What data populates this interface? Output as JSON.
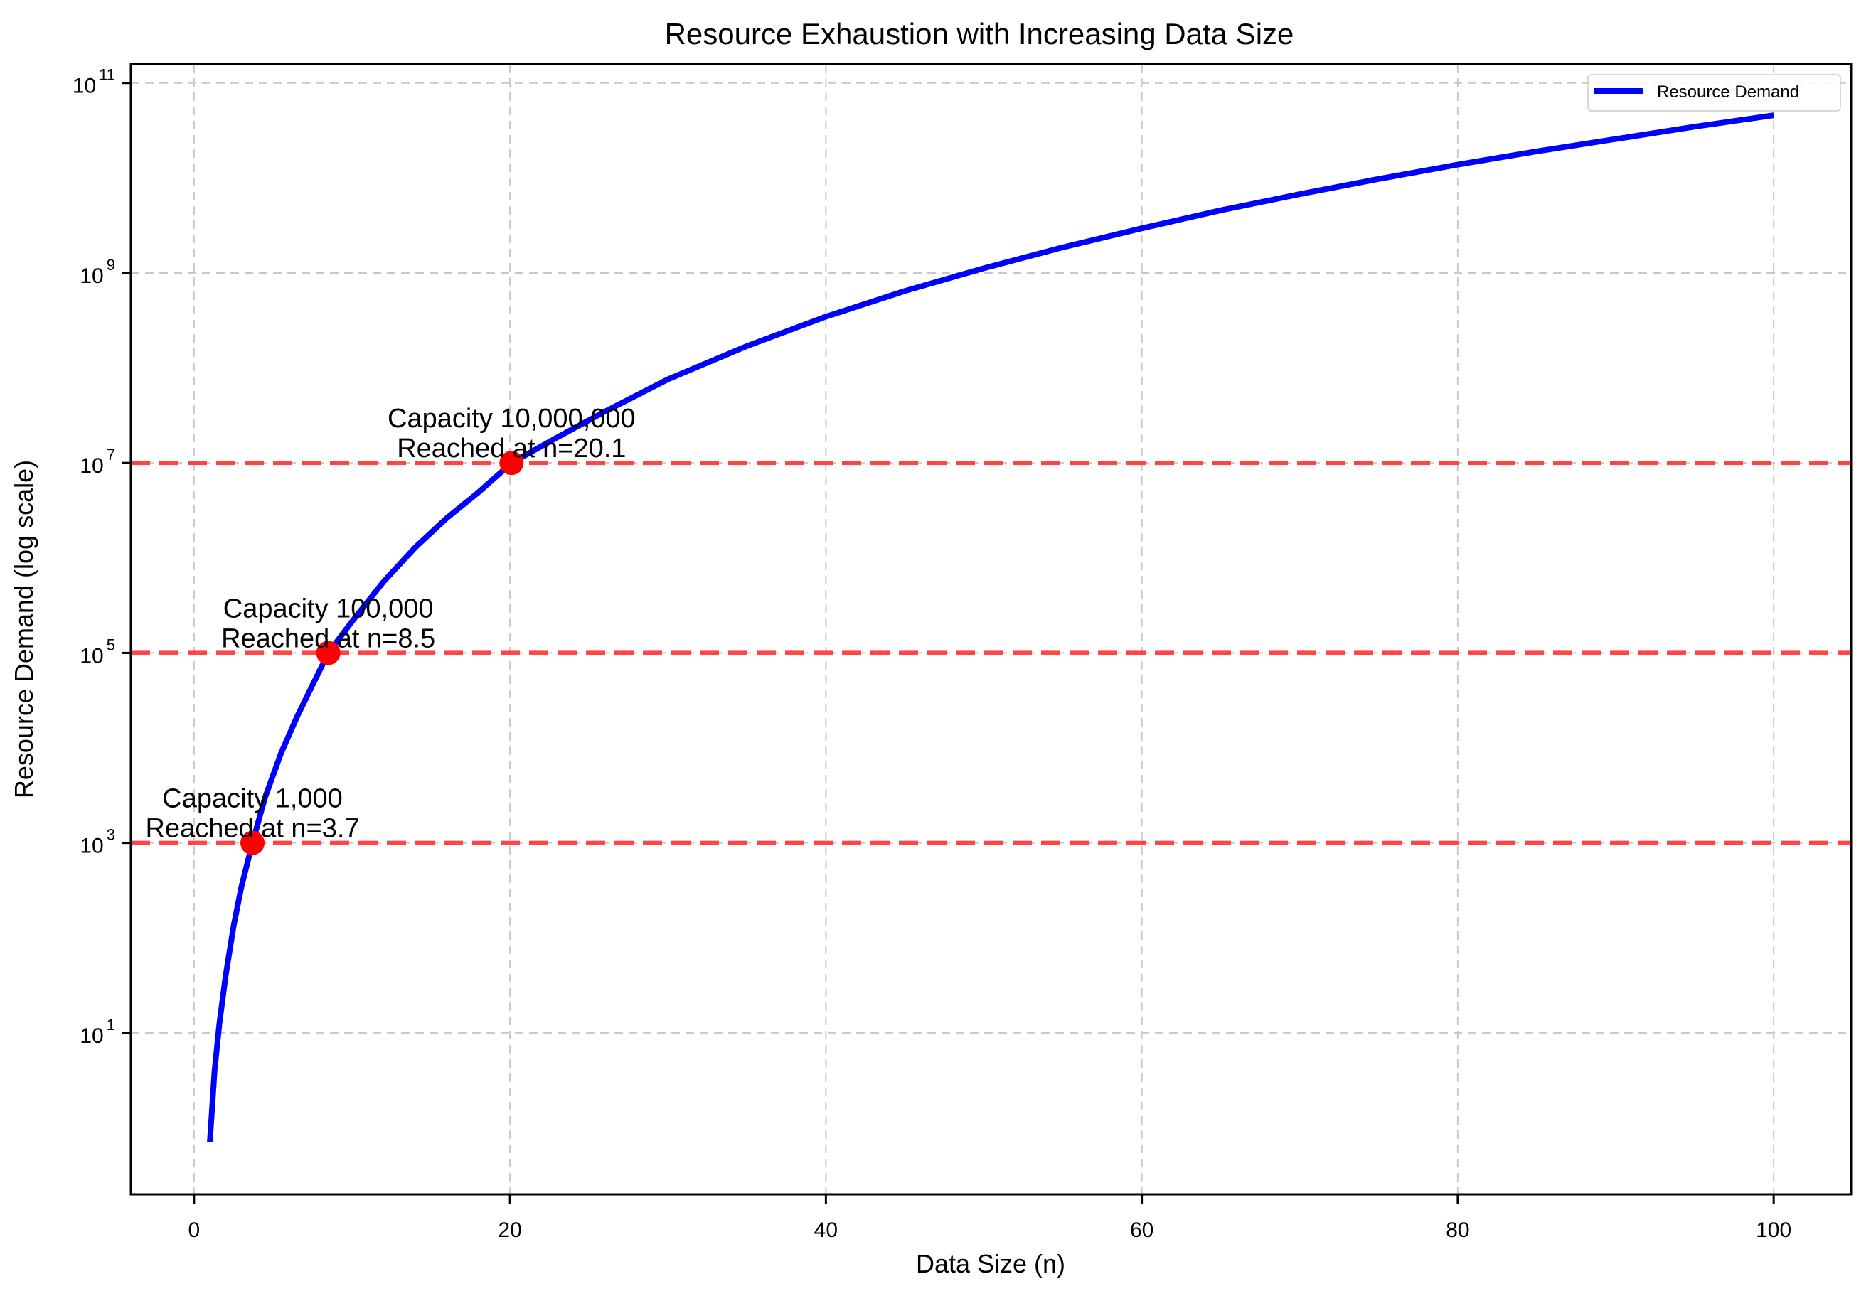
{
  "chart_data": {
    "type": "line",
    "title": "Resource Exhaustion with Increasing Data Size",
    "xlabel": "Data Size (n)",
    "ylabel": "Resource Demand (log scale)",
    "yscale": "log",
    "xlim": [
      -4.0,
      104.9
    ],
    "ylim_log10": [
      -0.7,
      11.2
    ],
    "grid": true,
    "x_ticks": [
      0,
      20,
      40,
      60,
      80,
      100
    ],
    "x_tick_labels": [
      "0",
      "20",
      "40",
      "60",
      "80",
      "100"
    ],
    "y_ticks_log10": [
      1,
      3,
      5,
      7,
      9,
      11
    ],
    "y_tick_labels": [
      {
        "base": "10",
        "exp": "1"
      },
      {
        "base": "10",
        "exp": "3"
      },
      {
        "base": "10",
        "exp": "5"
      },
      {
        "base": "10",
        "exp": "7"
      },
      {
        "base": "10",
        "exp": "9"
      },
      {
        "base": "10",
        "exp": "11"
      }
    ],
    "legend": {
      "position": "upper right",
      "entries": [
        "Resource Demand"
      ]
    },
    "series": [
      {
        "name": "Resource Demand",
        "color": "#0000ff",
        "x": [
          1,
          1.3,
          1.6,
          2,
          2.5,
          3,
          3.7,
          4.5,
          5.5,
          6.5,
          7.5,
          8.5,
          10,
          12,
          14,
          16,
          18,
          20.1,
          23,
          26,
          30,
          35,
          40,
          45,
          50,
          55,
          60,
          65,
          70,
          75,
          80,
          85,
          90,
          95,
          100
        ],
        "y_log10": [
          -0.15,
          0.6,
          1.09,
          1.6,
          2.12,
          2.54,
          3.0,
          3.48,
          3.94,
          4.32,
          4.66,
          5.0,
          5.33,
          5.75,
          6.11,
          6.42,
          6.69,
          7.0,
          7.27,
          7.54,
          7.88,
          8.23,
          8.54,
          8.81,
          9.05,
          9.27,
          9.47,
          9.66,
          9.83,
          9.99,
          10.14,
          10.28,
          10.41,
          10.54,
          10.66
        ]
      }
    ],
    "capacity_lines": [
      {
        "capacity": 1000,
        "log10": 3,
        "color": "#ff3333",
        "reached_at": 3.7,
        "label_line1": "Capacity 1,000",
        "label_line2": "Reached at n=3.7"
      },
      {
        "capacity": 100000,
        "log10": 5,
        "color": "#ff3333",
        "reached_at": 8.5,
        "label_line1": "Capacity 100,000",
        "label_line2": "Reached at n=8.5"
      },
      {
        "capacity": 10000000,
        "log10": 7,
        "color": "#ff3333",
        "reached_at": 20.1,
        "label_line1": "Capacity 10,000,000",
        "label_line2": "Reached at n=20.1"
      }
    ],
    "marker_color": "#ff0000"
  }
}
